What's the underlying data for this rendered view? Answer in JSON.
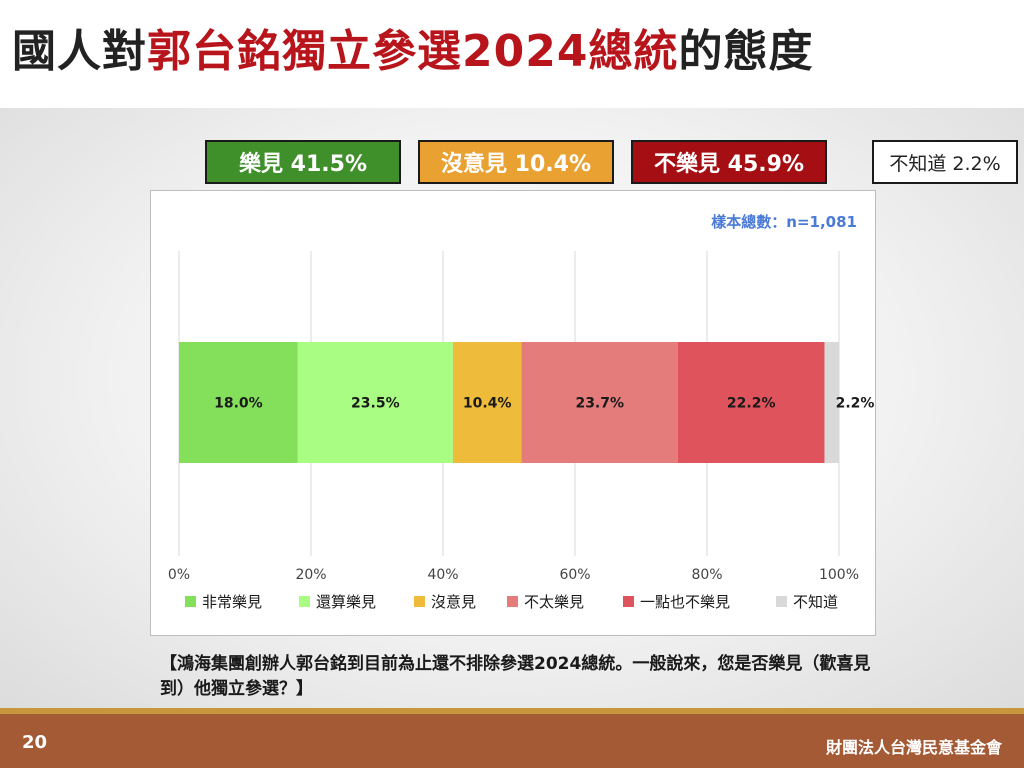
{
  "title": {
    "part1": "國人對",
    "part2": "郭台銘獨立參選2024總統",
    "part3": "的態度"
  },
  "summary": [
    {
      "label": "樂見 41.5%",
      "color": "#3f8f2a"
    },
    {
      "label": "沒意見 10.4%",
      "color": "#e9a231"
    },
    {
      "label": "不樂見 45.9%",
      "color": "#a50f14"
    },
    {
      "label": "不知道 2.2%",
      "color": "#ffffff"
    }
  ],
  "sample_note": "樣本總數：n=1,081",
  "question": "【鴻海集團創辦人郭台銘到目前為止還不排除參選2024總統。一般說來，您是否樂見（歡喜見到）他獨立參選？】",
  "page_number": "20",
  "organization": "財團法人台灣民意基金會",
  "chart_data": {
    "type": "bar",
    "orientation": "horizontal",
    "stacked": true,
    "x_ticks": [
      "0%",
      "20%",
      "40%",
      "60%",
      "80%",
      "100%"
    ],
    "xlim": [
      0,
      100
    ],
    "grid": true,
    "legend_position": "bottom",
    "series": [
      {
        "name": "非常樂見",
        "value": 18.0,
        "label": "18.0%",
        "color": "#84e05b"
      },
      {
        "name": "還算樂見",
        "value": 23.5,
        "label": "23.5%",
        "color": "#a9fd83"
      },
      {
        "name": "沒意見",
        "value": 10.4,
        "label": "10.4%",
        "color": "#efbb3b"
      },
      {
        "name": "不太樂見",
        "value": 23.7,
        "label": "23.7%",
        "color": "#e47c7c"
      },
      {
        "name": "一點也不樂見",
        "value": 22.2,
        "label": "22.2%",
        "color": "#df535c"
      },
      {
        "name": "不知道",
        "value": 2.2,
        "label": "2.2%",
        "color": "#d9d9d9"
      }
    ]
  }
}
